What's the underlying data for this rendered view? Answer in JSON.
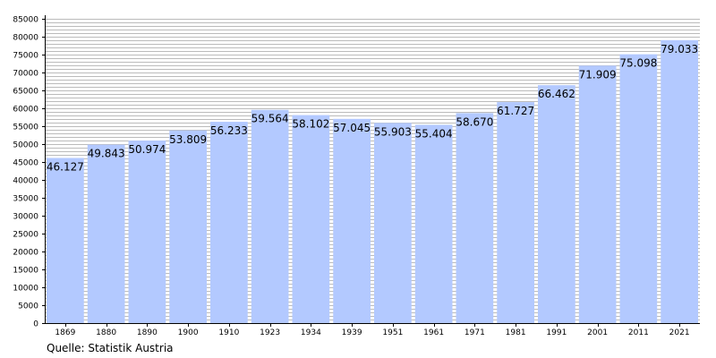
{
  "chart_data": {
    "type": "bar",
    "title": "",
    "xlabel": "",
    "ylabel": "",
    "categories": [
      "1869",
      "1880",
      "1890",
      "1900",
      "1910",
      "1923",
      "1934",
      "1939",
      "1951",
      "1961",
      "1971",
      "1981",
      "1991",
      "2001",
      "2011",
      "2021"
    ],
    "values": [
      46127,
      49843,
      50974,
      53809,
      56233,
      59564,
      58102,
      57045,
      55903,
      55404,
      58670,
      61727,
      66462,
      71909,
      75098,
      79033
    ],
    "value_labels": [
      "46.127",
      "49.843",
      "50.974",
      "53.809",
      "56.233",
      "59.564",
      "58.102",
      "57.045",
      "55.903",
      "55.404",
      "58.670",
      "61.727",
      "66.462",
      "71.909",
      "75.098",
      "79.033"
    ],
    "ylim": [
      0,
      85000
    ],
    "ytick_labels": [
      "0",
      "5000",
      "10000",
      "15000",
      "20000",
      "25000",
      "30000",
      "35000",
      "40000",
      "45000",
      "50000",
      "55000",
      "60000",
      "65000",
      "70000",
      "75000",
      "80000",
      "85000"
    ],
    "minor_grid_step": 1000,
    "grid": true,
    "legend": "none",
    "bar_color": "#b3c9ff",
    "gridline_color": "#bbbbbb"
  },
  "source": "Quelle: Statistik Austria"
}
